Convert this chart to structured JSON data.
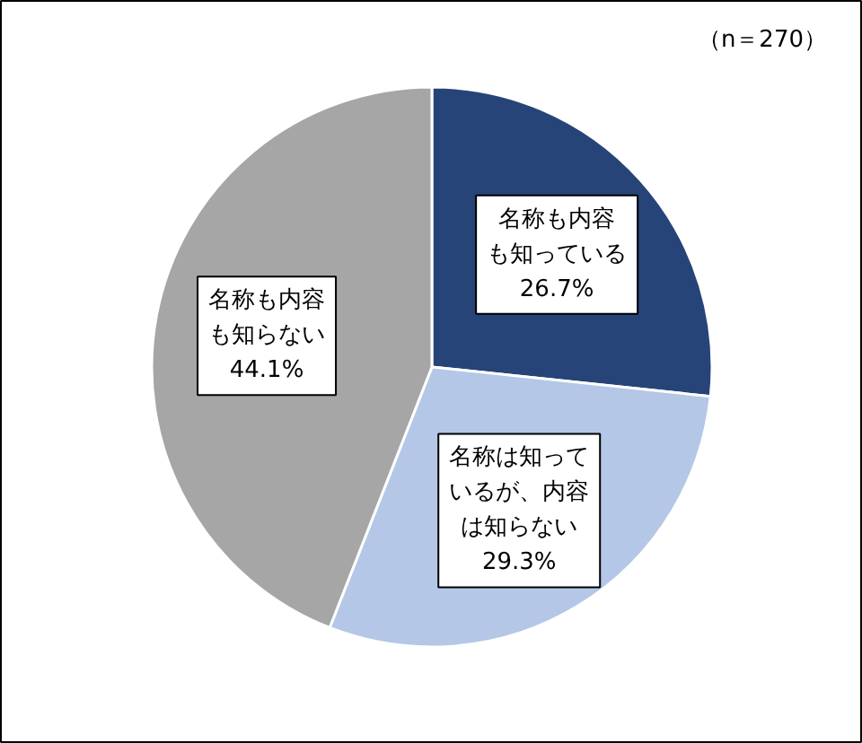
{
  "chart_data": {
    "type": "pie",
    "annotations": [
      "（n＝270）"
    ],
    "categories": [
      "名称も内容も知っている",
      "名称は知っているが、内容は知らない",
      "名称も内容も知らない"
    ],
    "values": [
      26.7,
      29.3,
      44.1
    ],
    "colors": [
      "#264478",
      "#b4c7e7",
      "#a6a6a6"
    ],
    "value_labels": [
      "26.7%",
      "29.3%",
      "44.1%"
    ]
  }
}
